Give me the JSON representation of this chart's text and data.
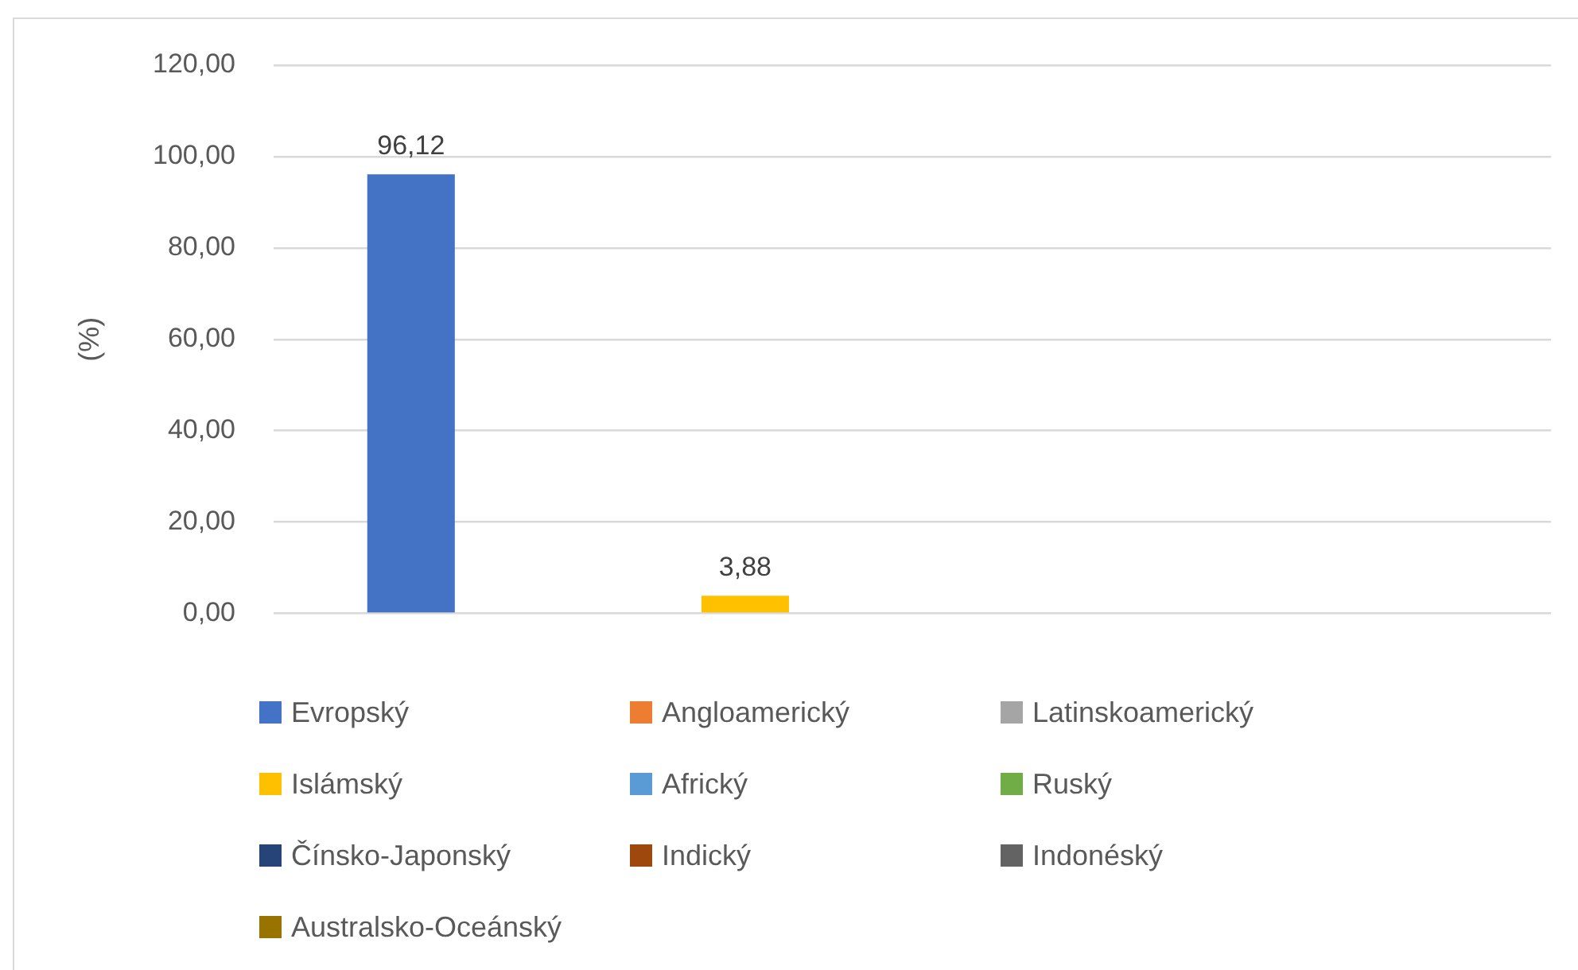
{
  "chart_data": {
    "type": "bar",
    "ylabel": "(%)",
    "categories": [
      null
    ],
    "series": [
      {
        "name": "Evropský",
        "color": "#4472c4",
        "values": [
          96.12
        ],
        "value_labels": [
          "96,12"
        ]
      },
      {
        "name": "Angloamerický",
        "color": "#ed7d31",
        "values": [
          null
        ],
        "value_labels": [
          null
        ]
      },
      {
        "name": "Latinskoamerický",
        "color": "#a5a5a5",
        "values": [
          null
        ],
        "value_labels": [
          null
        ]
      },
      {
        "name": "Islámský",
        "color": "#ffc000",
        "values": [
          3.88
        ],
        "value_labels": [
          "3,88"
        ]
      },
      {
        "name": "Africký",
        "color": "#5b9bd5",
        "values": [
          null
        ],
        "value_labels": [
          null
        ]
      },
      {
        "name": "Ruský",
        "color": "#70ad47",
        "values": [
          null
        ],
        "value_labels": [
          null
        ]
      },
      {
        "name": "Čínsko-Japonský",
        "color": "#264478",
        "values": [
          null
        ],
        "value_labels": [
          null
        ]
      },
      {
        "name": "Indický",
        "color": "#9e480e",
        "values": [
          null
        ],
        "value_labels": [
          null
        ]
      },
      {
        "name": "Indonéský",
        "color": "#636363",
        "values": [
          null
        ],
        "value_labels": [
          null
        ]
      },
      {
        "name": "Australsko-Oceánský",
        "color": "#997300",
        "values": [
          null
        ],
        "value_labels": [
          null
        ]
      }
    ],
    "ylim": [
      0,
      120
    ],
    "yticks": [
      {
        "value": 0,
        "label": "0,00"
      },
      {
        "value": 20,
        "label": "20,00"
      },
      {
        "value": 40,
        "label": "40,00"
      },
      {
        "value": 60,
        "label": "60,00"
      },
      {
        "value": 80,
        "label": "80,00"
      },
      {
        "value": 100,
        "label": "100,00"
      },
      {
        "value": 120,
        "label": "120,00"
      }
    ],
    "grid": "y",
    "legend": "bottom",
    "tick_labels": "y"
  }
}
